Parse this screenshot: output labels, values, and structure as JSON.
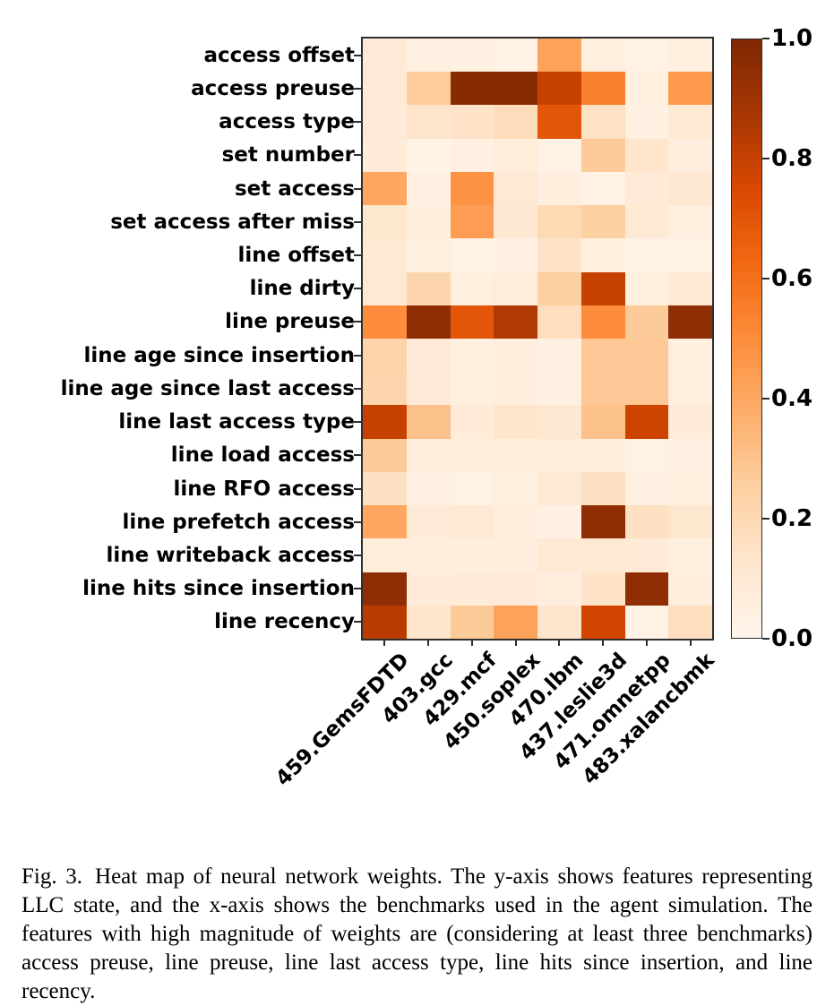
{
  "caption": {
    "label": "Fig. 3.",
    "text": "Heat map of neural network weights. The y-axis shows features representing LLC state, and the x-axis shows the benchmarks used in the agent simulation. The features with high magnitude of weights are (considering at least three benchmarks) access preuse, line preuse, line last access type, line hits since insertion, and line recency."
  },
  "chart_data": {
    "type": "heatmap",
    "title": "",
    "xlabel": "",
    "ylabel": "",
    "colormap": "Oranges",
    "grid": false,
    "value_range": [
      0.0,
      1.0
    ],
    "colormap_stops": [
      {
        "t": 0.0,
        "hex": "#fff5eb"
      },
      {
        "t": 0.125,
        "hex": "#fee6ce"
      },
      {
        "t": 0.25,
        "hex": "#fdd0a2"
      },
      {
        "t": 0.375,
        "hex": "#fdae6b"
      },
      {
        "t": 0.5,
        "hex": "#fd8d3c"
      },
      {
        "t": 0.625,
        "hex": "#f16913"
      },
      {
        "t": 0.75,
        "hex": "#d94801"
      },
      {
        "t": 0.875,
        "hex": "#a63603"
      },
      {
        "t": 1.0,
        "hex": "#7f2704"
      }
    ],
    "colorbar": {
      "position": "right",
      "tick_labels": [
        "1.0",
        "0.8",
        "0.6",
        "0.4",
        "0.2",
        "0.0"
      ],
      "tick_values": [
        1.0,
        0.8,
        0.6,
        0.4,
        0.2,
        0.0
      ]
    },
    "x_categories": [
      "459.GemsFDTD",
      "403.gcc",
      "429.mcf",
      "450.soplex",
      "470.lbm",
      "437.leslie3d",
      "471.omnetpp",
      "483.xalancbmk"
    ],
    "y_categories": [
      "access offset",
      "access preuse",
      "access type",
      "set number",
      "set access",
      "set access after miss",
      "line offset",
      "line dirty",
      "line preuse",
      "line age since insertion",
      "line age since last access",
      "line last access type",
      "line load access",
      "line RFO access",
      "line prefetch access",
      "line writeback access",
      "line hits since insertion",
      "line recency"
    ],
    "matrix": [
      [
        0.09,
        0.04,
        0.04,
        0.03,
        0.42,
        0.05,
        0.03,
        0.05
      ],
      [
        0.09,
        0.26,
        0.97,
        0.97,
        0.8,
        0.55,
        0.05,
        0.45
      ],
      [
        0.09,
        0.13,
        0.14,
        0.18,
        0.7,
        0.15,
        0.04,
        0.1
      ],
      [
        0.08,
        0.02,
        0.04,
        0.07,
        0.03,
        0.27,
        0.13,
        0.06
      ],
      [
        0.4,
        0.04,
        0.48,
        0.1,
        0.06,
        0.03,
        0.09,
        0.11
      ],
      [
        0.12,
        0.06,
        0.44,
        0.11,
        0.2,
        0.25,
        0.1,
        0.05
      ],
      [
        0.1,
        0.05,
        0.03,
        0.04,
        0.14,
        0.05,
        0.03,
        0.03
      ],
      [
        0.1,
        0.22,
        0.05,
        0.07,
        0.25,
        0.8,
        0.05,
        0.1
      ],
      [
        0.5,
        0.95,
        0.7,
        0.85,
        0.17,
        0.5,
        0.27,
        0.95
      ],
      [
        0.23,
        0.09,
        0.05,
        0.06,
        0.04,
        0.28,
        0.28,
        0.05
      ],
      [
        0.22,
        0.09,
        0.05,
        0.06,
        0.04,
        0.28,
        0.28,
        0.05
      ],
      [
        0.8,
        0.3,
        0.08,
        0.13,
        0.11,
        0.3,
        0.78,
        0.08
      ],
      [
        0.27,
        0.07,
        0.06,
        0.06,
        0.06,
        0.06,
        0.03,
        0.04
      ],
      [
        0.16,
        0.04,
        0.03,
        0.05,
        0.1,
        0.16,
        0.04,
        0.05
      ],
      [
        0.4,
        0.09,
        0.1,
        0.06,
        0.04,
        0.95,
        0.16,
        0.12
      ],
      [
        0.07,
        0.07,
        0.06,
        0.06,
        0.1,
        0.1,
        0.09,
        0.05
      ],
      [
        0.95,
        0.08,
        0.08,
        0.09,
        0.06,
        0.14,
        0.95,
        0.06
      ],
      [
        0.83,
        0.13,
        0.27,
        0.42,
        0.13,
        0.77,
        0.03,
        0.17
      ]
    ]
  }
}
